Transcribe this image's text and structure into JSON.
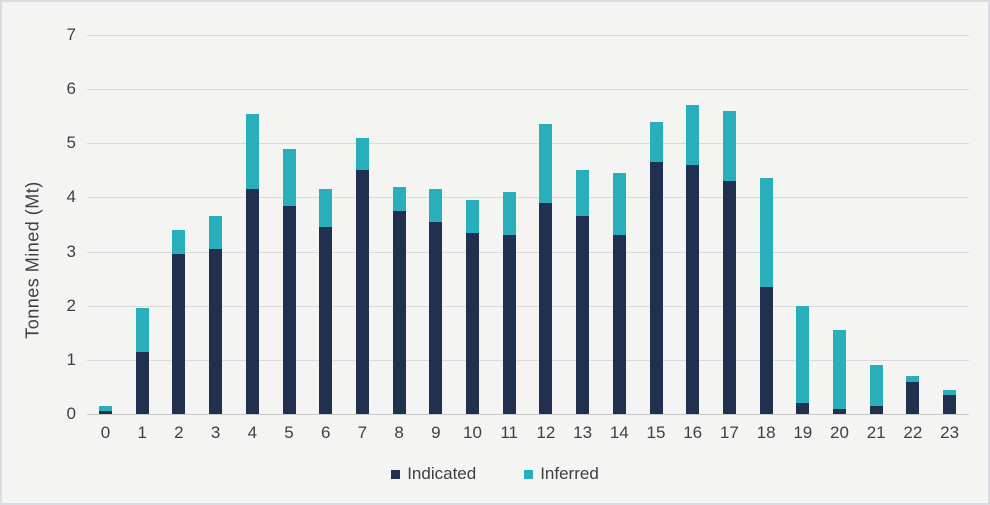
{
  "chart_data": {
    "type": "bar",
    "stacked": true,
    "categories": [
      "0",
      "1",
      "2",
      "3",
      "4",
      "5",
      "6",
      "7",
      "8",
      "9",
      "10",
      "11",
      "12",
      "13",
      "14",
      "15",
      "16",
      "17",
      "18",
      "19",
      "20",
      "21",
      "22",
      "23"
    ],
    "series": [
      {
        "name": "Indicated",
        "color": "#20304e",
        "values": [
          0.05,
          1.15,
          2.95,
          3.05,
          4.15,
          3.85,
          3.45,
          4.5,
          3.75,
          3.55,
          3.35,
          3.3,
          3.9,
          3.65,
          3.3,
          4.65,
          4.6,
          4.3,
          2.35,
          0.2,
          0.1,
          0.15,
          0.6,
          0.35
        ]
      },
      {
        "name": "Inferred",
        "color": "#29aebc",
        "values": [
          0.1,
          0.8,
          0.45,
          0.6,
          1.4,
          1.05,
          0.7,
          0.6,
          0.45,
          0.6,
          0.6,
          0.8,
          1.45,
          0.85,
          1.15,
          0.75,
          1.1,
          1.3,
          2.0,
          1.8,
          1.45,
          0.75,
          0.1,
          0.1
        ]
      }
    ],
    "title": "",
    "xlabel": "",
    "ylabel": "Tonnes Mined (Mt)",
    "ylim": [
      0,
      7
    ],
    "ytick_step": 1,
    "grid": "horizontal",
    "legend_position": "bottom",
    "colors": {
      "background": "#f4f4f3",
      "gridline": "#d9d9d9",
      "axis_text": "#404040",
      "frame_border": "#d9dde2"
    }
  }
}
